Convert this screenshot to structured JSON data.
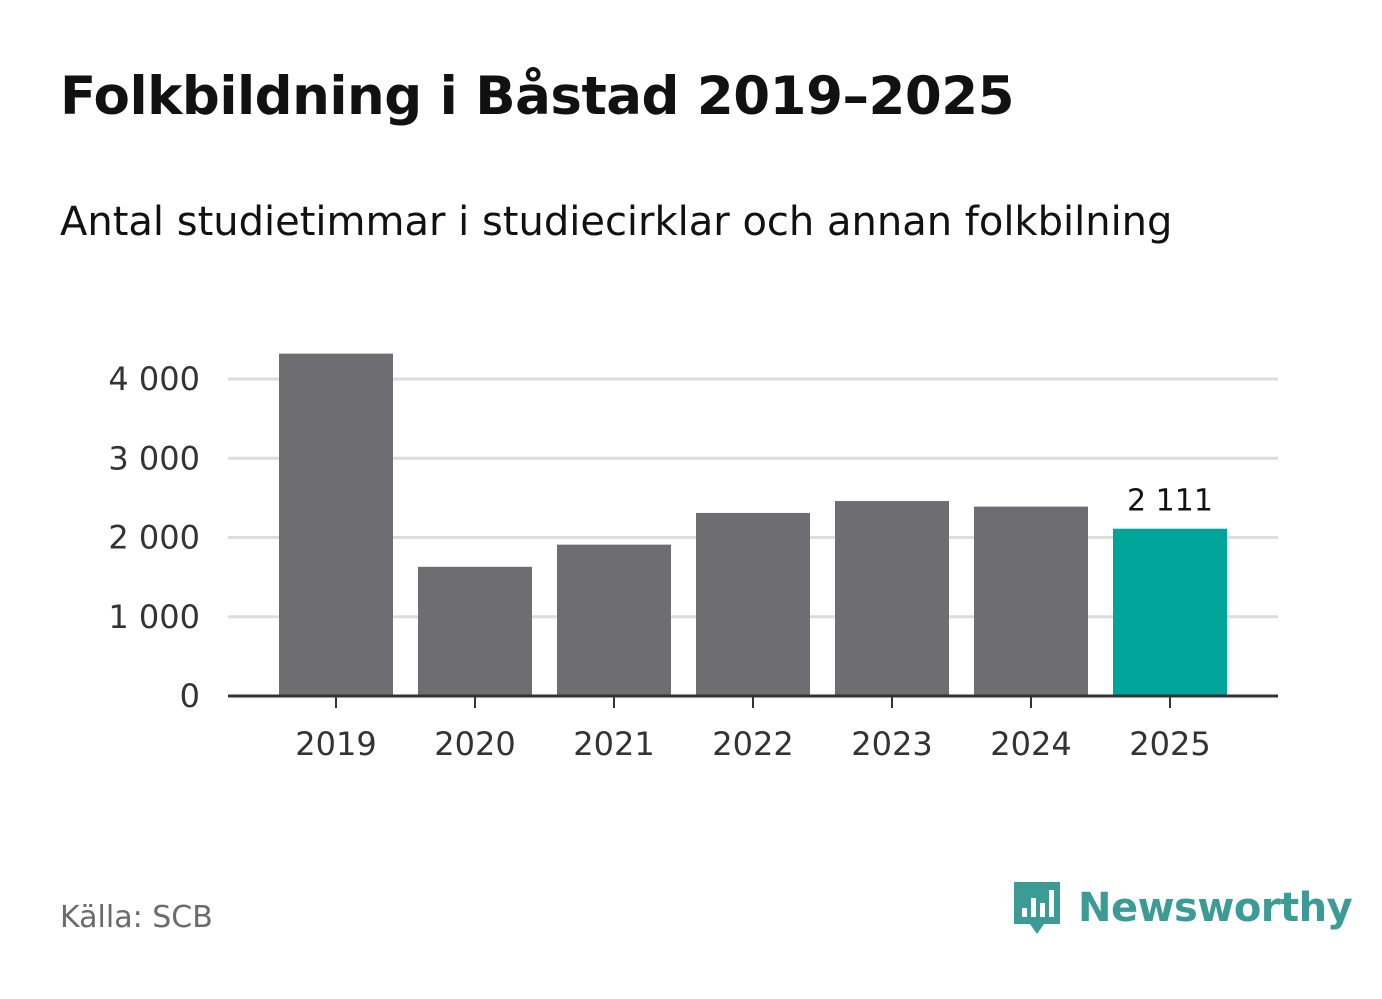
{
  "header": {
    "title": "Folkbildning i Båstad 2019–2025",
    "subtitle": "Antal studietimmar i studiecirklar och annan folkbilning"
  },
  "footer": {
    "source": "Källa: SCB",
    "brand": "Newsworthy",
    "brand_icon": "newsworthy-logo-icon"
  },
  "colors": {
    "bar": "#6e6d72",
    "highlight": "#00a499",
    "grid": "#dddddd",
    "axis": "#333333",
    "brand": "#3d9b95"
  },
  "chart_data": {
    "type": "bar",
    "title": "Folkbildning i Båstad 2019–2025",
    "subtitle": "Antal studietimmar i studiecirklar och annan folkbilning",
    "xlabel": "",
    "ylabel": "",
    "categories": [
      "2019",
      "2020",
      "2021",
      "2022",
      "2023",
      "2024",
      "2025"
    ],
    "values": [
      4320,
      1630,
      1910,
      2310,
      2460,
      2390,
      2111
    ],
    "highlight_index": 6,
    "data_labels": [
      {
        "index": 6,
        "text": "2 111"
      }
    ],
    "ylim": [
      0,
      4000
    ],
    "yticks": [
      0,
      1000,
      2000,
      3000,
      4000
    ],
    "ytick_labels": [
      "0",
      "1 000",
      "2 000",
      "3 000",
      "4 000"
    ],
    "grid": true,
    "legend": "none"
  }
}
